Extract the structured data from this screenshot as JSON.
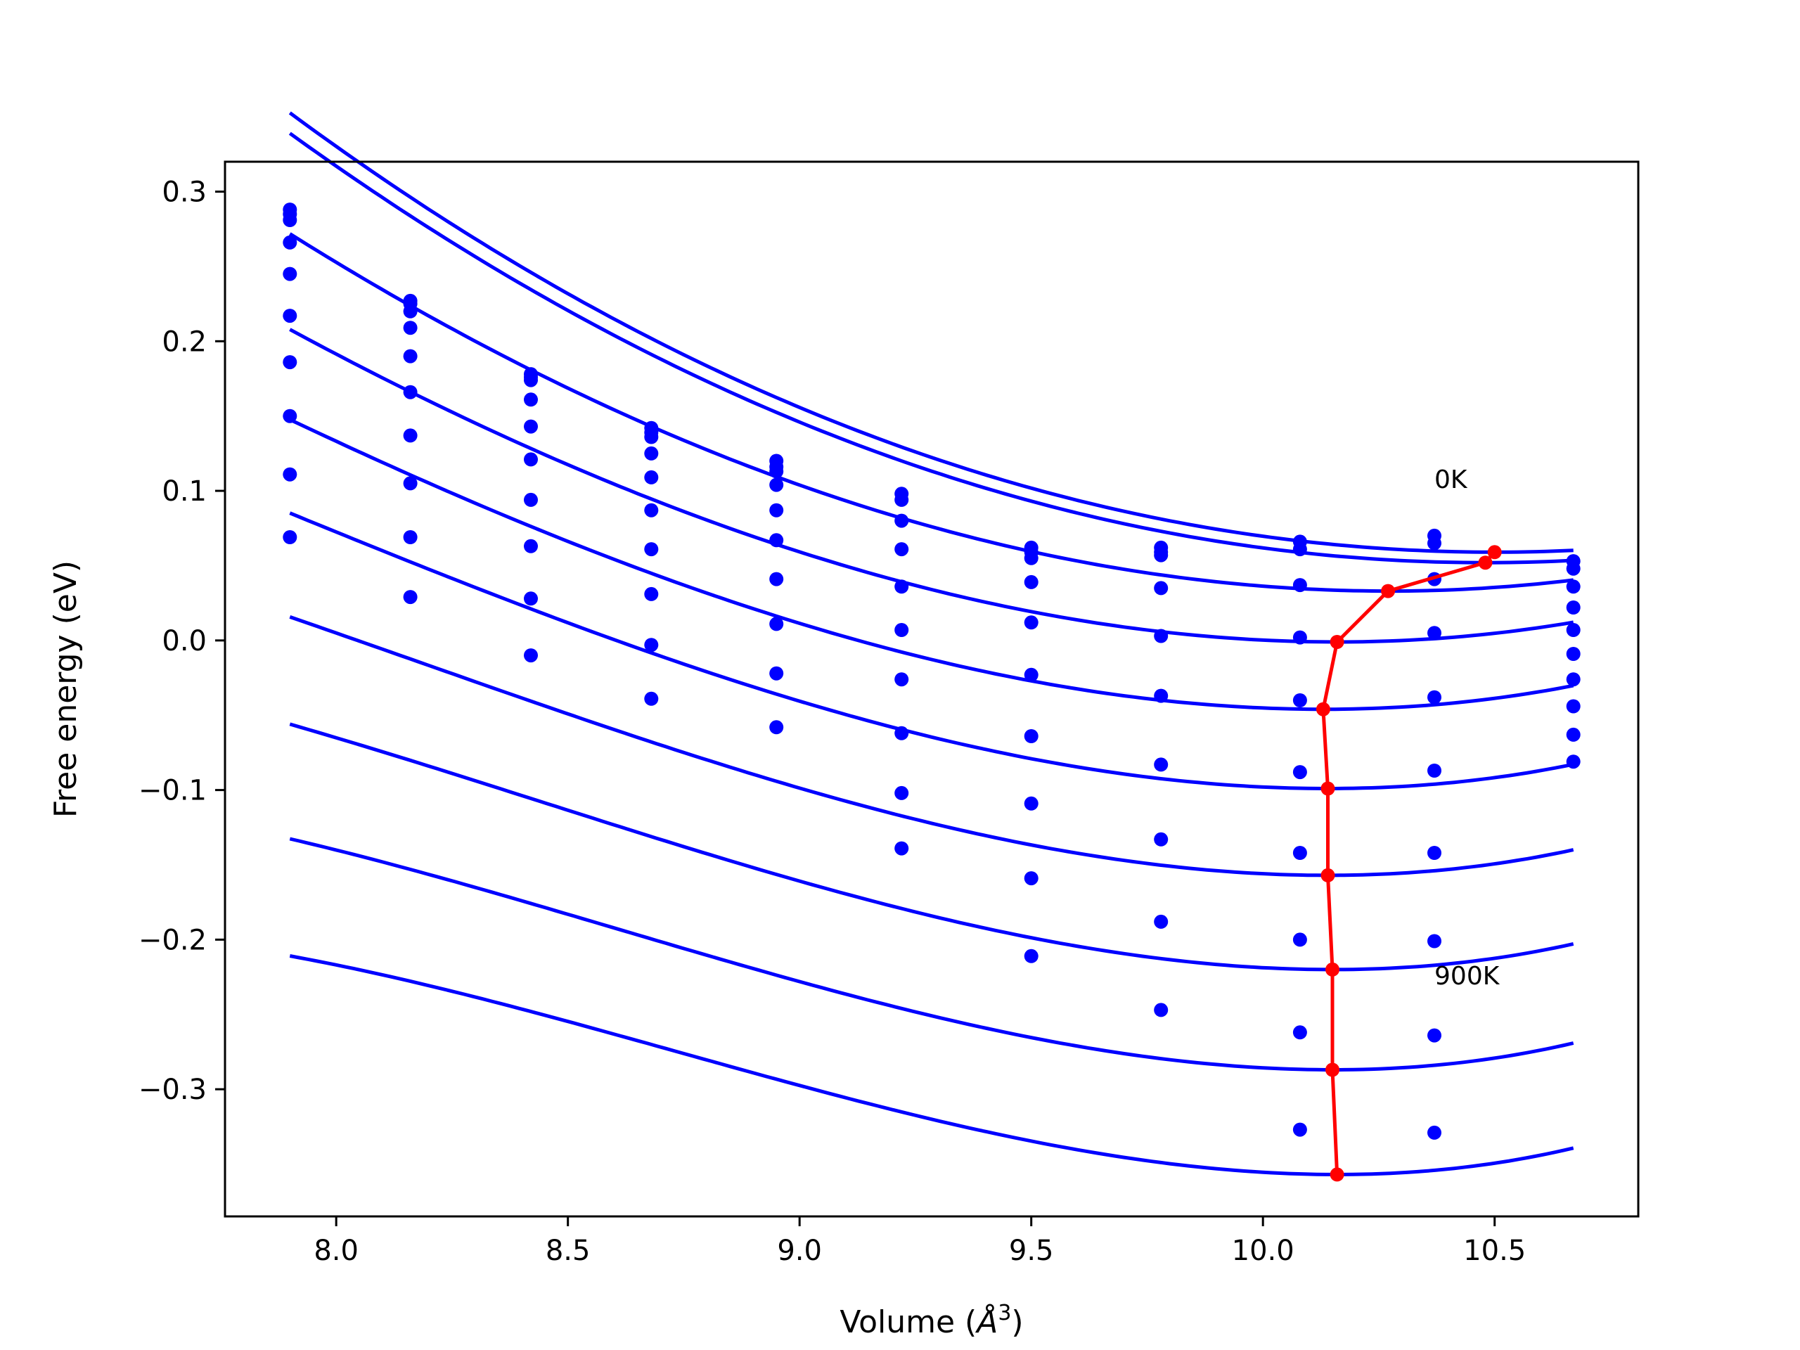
{
  "chart_data": {
    "type": "scatter",
    "xlabel": "Volume (",
    "xlabel_unit_base": "Å",
    "xlabel_unit_sup": "3",
    "xlabel_close": ")",
    "ylabel": "Free energy (eV)",
    "xlim": [
      7.76,
      10.81
    ],
    "ylim": [
      -0.385,
      0.32
    ],
    "xticks": [
      8.0,
      8.5,
      9.0,
      9.5,
      10.0,
      10.5
    ],
    "xtick_labels": [
      "8.0",
      "8.5",
      "9.0",
      "9.5",
      "10.0",
      "10.5"
    ],
    "yticks": [
      0.3,
      0.2,
      0.1,
      0.0,
      -0.1,
      -0.2,
      -0.3
    ],
    "ytick_labels": [
      "0.3",
      "0.2",
      "0.1",
      "0.0",
      "−0.1",
      "−0.2",
      "−0.3"
    ],
    "grid": false,
    "colors": {
      "fit": "#0000ff",
      "points": "#0000ff",
      "minima": "#ff0000"
    },
    "annotations": [
      {
        "text": "0K",
        "x": 10.37,
        "y": 0.102
      },
      {
        "text": "900K",
        "x": 10.37,
        "y": -0.23
      }
    ],
    "volumes": [
      7.9,
      8.16,
      8.42,
      8.68,
      8.95,
      9.22,
      9.5,
      9.78,
      10.08,
      10.37,
      10.67
    ],
    "series": [
      {
        "values": [
          0.288,
          0.227,
          0.178,
          0.142,
          0.12,
          0.098,
          0.062,
          0.062,
          0.066,
          0.07,
          0.048
        ],
        "fit": {
          "V0": 10.5,
          "E0": 0.059,
          "a": 0.0424,
          "b": -0.0004,
          "xmin": 7.9,
          "xmax": 10.67
        }
      },
      {
        "values": [
          0.285,
          0.225,
          0.176,
          0.139,
          0.116,
          0.094,
          0.059,
          0.059,
          0.061,
          0.065,
          0.053
        ],
        "fit": {
          "V0": 10.48,
          "E0": 0.052,
          "a": 0.0426,
          "b": -0.0002,
          "xmin": 7.9,
          "xmax": 10.67
        }
      },
      {
        "values": [
          0.281,
          0.22,
          0.174,
          0.136,
          0.113,
          0.08,
          0.055,
          0.057,
          0.037,
          0.041,
          0.036
        ],
        "fit": {
          "V0": 10.27,
          "E0": 0.033,
          "a": 0.0456,
          "b": 0.0013,
          "xmin": 7.9,
          "xmax": 10.67
        }
      },
      {
        "values": [
          0.266,
          0.209,
          0.161,
          0.125,
          0.104,
          0.061,
          0.039,
          0.035,
          0.002,
          0.005,
          0.022
        ],
        "fit": {
          "V0": 10.16,
          "E0": -0.001,
          "a": 0.0488,
          "b": 0.0035,
          "xmin": 7.9,
          "xmax": 10.67
        }
      },
      {
        "values": [
          0.245,
          0.19,
          0.143,
          0.109,
          0.087,
          0.036,
          0.012,
          0.003,
          -0.04,
          -0.038,
          0.007
        ],
        "fit": {
          "V0": 10.13,
          "E0": -0.046,
          "a": 0.0512,
          "b": 0.0055,
          "xmin": 7.9,
          "xmax": 10.67
        }
      },
      {
        "values": [
          0.217,
          0.166,
          0.121,
          0.087,
          0.067,
          0.007,
          -0.023,
          -0.037,
          -0.088,
          -0.087,
          -0.009
        ],
        "fit": {
          "V0": 10.14,
          "E0": -0.099,
          "a": 0.0535,
          "b": 0.0075,
          "xmin": 7.9,
          "xmax": 10.67
        }
      },
      {
        "values": [
          0.186,
          0.137,
          0.094,
          0.061,
          0.041,
          -0.026,
          -0.064,
          -0.083,
          -0.142,
          -0.142,
          -0.026
        ],
        "fit": {
          "V0": 10.14,
          "E0": -0.157,
          "a": 0.0557,
          "b": 0.0095,
          "xmin": 7.9,
          "xmax": 10.67
        }
      },
      {
        "values": [
          0.15,
          0.105,
          0.063,
          0.031,
          0.011,
          -0.062,
          -0.109,
          -0.133,
          -0.2,
          -0.201,
          -0.044
        ],
        "fit": {
          "V0": 10.15,
          "E0": -0.22,
          "a": 0.0576,
          "b": 0.0112,
          "xmin": 7.9,
          "xmax": 10.67
        }
      },
      {
        "values": [
          0.111,
          0.069,
          0.028,
          -0.003,
          -0.022,
          -0.102,
          -0.159,
          -0.188,
          -0.262,
          -0.264,
          -0.063
        ],
        "fit": {
          "V0": 10.15,
          "E0": -0.287,
          "a": 0.0593,
          "b": 0.0128,
          "xmin": 7.9,
          "xmax": 10.67
        }
      },
      {
        "values": [
          0.069,
          0.029,
          -0.01,
          -0.039,
          -0.058,
          -0.139,
          -0.211,
          -0.247,
          -0.327,
          -0.329,
          -0.081
        ],
        "fit": {
          "V0": 10.16,
          "E0": -0.357,
          "a": 0.0607,
          "b": 0.0142,
          "xmin": 7.9,
          "xmax": 10.67
        }
      }
    ],
    "minima": {
      "x": [
        10.5,
        10.48,
        10.27,
        10.16,
        10.13,
        10.14,
        10.14,
        10.15,
        10.15,
        10.16
      ],
      "y": [
        0.059,
        0.052,
        0.033,
        -0.001,
        -0.046,
        -0.099,
        -0.157,
        -0.22,
        -0.287,
        -0.357
      ]
    }
  }
}
